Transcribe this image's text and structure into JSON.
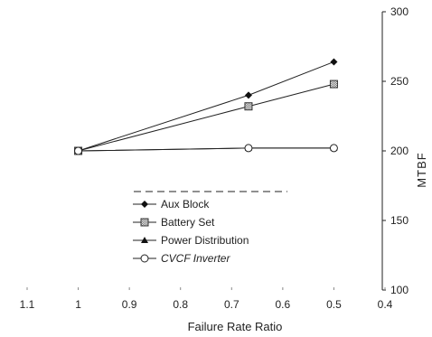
{
  "chart_data": {
    "type": "line",
    "title": "",
    "xlabel": "Failure Rate Ratio",
    "ylabel": "MTBF",
    "xlim": [
      1.1,
      0.4
    ],
    "ylim": [
      100,
      300
    ],
    "x_ticks": [
      "1.1",
      "1",
      "0.9",
      "0.8",
      "0.7",
      "0.6",
      "0.5",
      "0.4"
    ],
    "y_ticks": [
      "300",
      "250",
      "200",
      "150",
      "100"
    ],
    "y_axis_side": "right",
    "grid": false,
    "legend_position": "center-left",
    "x": [
      1,
      0.667,
      0.5
    ],
    "series": [
      {
        "name": "Aux Block",
        "marker": "diamond-filled",
        "values": [
          200,
          240,
          264
        ]
      },
      {
        "name": "Battery Set",
        "marker": "square-hatched",
        "values": [
          200,
          232,
          248
        ]
      },
      {
        "name": "Power Distribution",
        "marker": "triangle-filled",
        "values": [
          200,
          202,
          202
        ]
      },
      {
        "name": "CVCF Inverter",
        "marker": "circle-open",
        "values": [
          200,
          202,
          202
        ]
      }
    ]
  }
}
